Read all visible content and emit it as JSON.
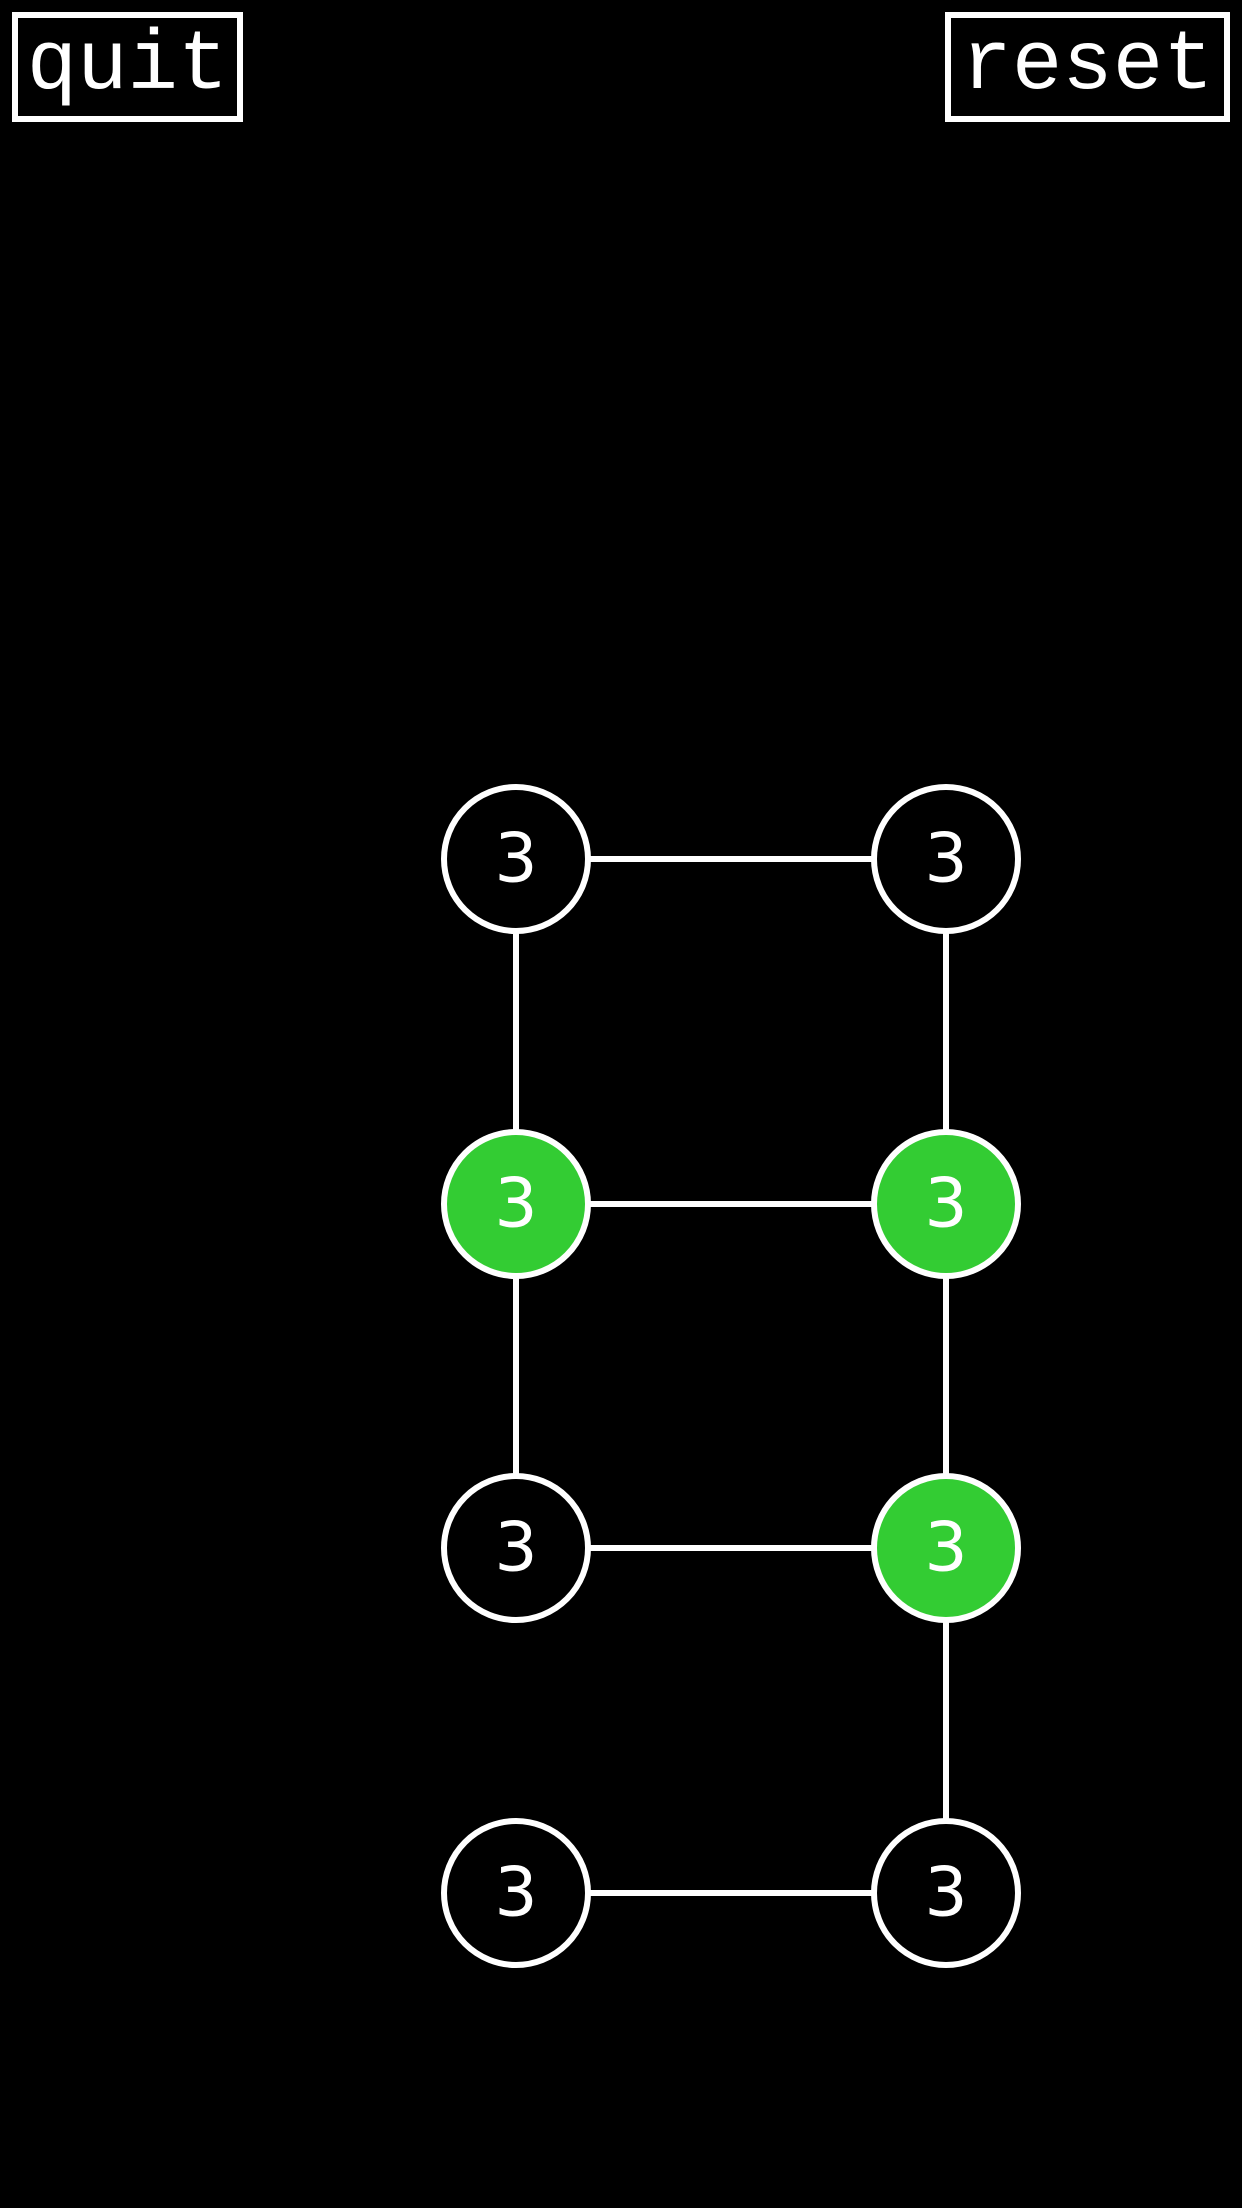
{
  "toolbar": {
    "quit_label": "quit",
    "reset_label": "reset"
  },
  "colors": {
    "background": "#000000",
    "outline": "#ffffff",
    "active_fill": "#33cc33",
    "inactive_fill": "#000000",
    "label": "#ffffff"
  },
  "board": {
    "rows": 4,
    "cols": 2,
    "nodes": [
      {
        "id": "r0c0",
        "row": 0,
        "col": 0,
        "value": "3",
        "active": false
      },
      {
        "id": "r0c1",
        "row": 0,
        "col": 1,
        "value": "3",
        "active": false
      },
      {
        "id": "r1c0",
        "row": 1,
        "col": 0,
        "value": "3",
        "active": true
      },
      {
        "id": "r1c1",
        "row": 1,
        "col": 1,
        "value": "3",
        "active": true
      },
      {
        "id": "r2c0",
        "row": 2,
        "col": 0,
        "value": "3",
        "active": false
      },
      {
        "id": "r2c1",
        "row": 2,
        "col": 1,
        "value": "3",
        "active": true
      },
      {
        "id": "r3c0",
        "row": 3,
        "col": 0,
        "value": "3",
        "active": false
      },
      {
        "id": "r3c1",
        "row": 3,
        "col": 1,
        "value": "3",
        "active": false
      }
    ],
    "edges": [
      [
        "r0c0",
        "r0c1"
      ],
      [
        "r0c0",
        "r1c0"
      ],
      [
        "r0c1",
        "r1c1"
      ],
      [
        "r1c0",
        "r1c1"
      ],
      [
        "r1c0",
        "r2c0"
      ],
      [
        "r1c1",
        "r2c1"
      ],
      [
        "r2c0",
        "r2c1"
      ],
      [
        "r2c1",
        "r3c1"
      ],
      [
        "r3c0",
        "r3c1"
      ]
    ]
  }
}
